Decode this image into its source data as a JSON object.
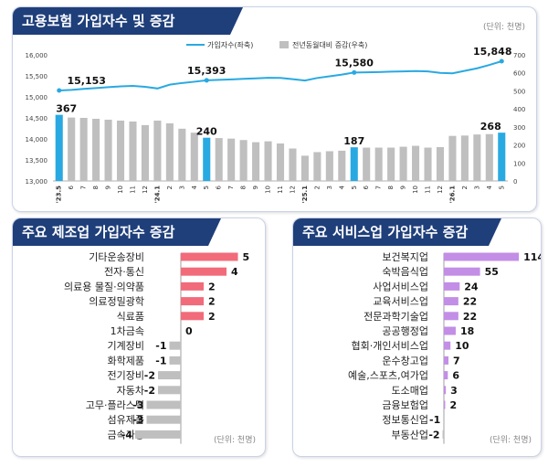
{
  "top": {
    "title": "고용보험 가입자수 및 증감",
    "unit": "(단위: 천명)",
    "legend_line": "가입자수(좌축)",
    "legend_bar": "전년동월대비 증감(우축)"
  },
  "manufacturing": {
    "title": "주요 제조업 가입자수 증감",
    "unit": "(단위: 천명)"
  },
  "services": {
    "title": "주요 서비스업 가입자수 증감",
    "unit": "(단위: 천명)"
  },
  "colors": {
    "title_bg": "#1f3f7a",
    "line": "#29a9e1",
    "bar_gray": "#bfbfbf",
    "bar_blue": "#29a9e1",
    "manufacturing_pos": "#f26b7a",
    "negative": "#bfbfbf",
    "services_pos": "#c38ee6"
  },
  "chart_data": [
    {
      "type": "bar+line",
      "categories": [
        "'23.5",
        "6",
        "7",
        "8",
        "9",
        "10",
        "11",
        "12",
        "'24.1",
        "2",
        "3",
        "4",
        "5",
        "6",
        "7",
        "8",
        "9",
        "10",
        "11",
        "12",
        "'25.1",
        "2",
        "3",
        "4",
        "5",
        "6",
        "7",
        "8",
        "9",
        "10",
        "11",
        "12",
        "'26.1",
        "2",
        "3",
        "4",
        "5"
      ],
      "series": [
        {
          "name": "가입자수(좌축)",
          "type": "line",
          "axis": "left",
          "values": [
            15153,
            15165,
            15190,
            15210,
            15230,
            15250,
            15260,
            15240,
            15200,
            15290,
            15330,
            15360,
            15393,
            15405,
            15415,
            15430,
            15440,
            15455,
            15450,
            15420,
            15390,
            15450,
            15490,
            15530,
            15580,
            15585,
            15590,
            15600,
            15605,
            15615,
            15605,
            15570,
            15560,
            15620,
            15680,
            15760,
            15848
          ]
        },
        {
          "name": "전년동월대비 증감(우축)",
          "type": "bar",
          "axis": "right",
          "values": [
            367,
            352,
            350,
            345,
            340,
            335,
            330,
            310,
            335,
            320,
            290,
            268,
            240,
            238,
            235,
            227,
            215,
            220,
            208,
            180,
            140,
            160,
            165,
            168,
            187,
            185,
            185,
            185,
            190,
            195,
            185,
            188,
            250,
            252,
            258,
            260,
            268
          ]
        }
      ],
      "highlight_categories": [
        "'23.5",
        "5",
        "5",
        "5"
      ],
      "point_labels": [
        {
          "category_index": 0,
          "line": "15,153",
          "bar": "367"
        },
        {
          "category_index": 12,
          "line": "15,393",
          "bar": "240"
        },
        {
          "category_index": 24,
          "line": "15,580",
          "bar": "187"
        },
        {
          "category_index": 36,
          "line": "15,848",
          "bar": "268"
        }
      ],
      "y_left": {
        "ticks": [
          "16,000",
          "15,500",
          "15,000",
          "14,500",
          "14,000",
          "13,500",
          "13,000"
        ],
        "range": [
          13000,
          16000
        ]
      },
      "y_right": {
        "ticks": [
          "700",
          "600",
          "500",
          "400",
          "300",
          "200",
          "100",
          "0"
        ],
        "range": [
          0,
          700
        ]
      }
    },
    {
      "type": "bar",
      "orientation": "horizontal",
      "categories": [
        "기타운송장비",
        "전자·통신",
        "의료용 물질·의약품",
        "의료정밀광학",
        "식료품",
        "1차금속",
        "기계장비",
        "화학제품",
        "전기장비",
        "자동차",
        "고무·플라스틱",
        "섬유제품",
        "금속가공"
      ],
      "values": [
        5,
        4,
        2,
        2,
        2,
        0,
        -1,
        -1,
        -2,
        -2,
        -3,
        -3,
        -4
      ],
      "labels": [
        "5",
        "4",
        "2",
        "2",
        "2",
        "0",
        "-1",
        "-1",
        "-2",
        "-2",
        "-3",
        "-3",
        "-4"
      ]
    },
    {
      "type": "bar",
      "orientation": "horizontal",
      "categories": [
        "보건복지업",
        "숙박음식업",
        "사업서비스업",
        "교육서비스업",
        "전문과학기술업",
        "공공행정업",
        "협회·개인서비스업",
        "운수창고업",
        "예술,스포츠,여가업",
        "도소매업",
        "금융보험업",
        "정보통신업",
        "부동산업"
      ],
      "values": [
        114,
        55,
        24,
        22,
        22,
        18,
        10,
        7,
        6,
        3,
        2,
        -1,
        -2
      ],
      "labels": [
        "114",
        "55",
        "24",
        "22",
        "22",
        "18",
        "10",
        "7",
        "6",
        "3",
        "2",
        "-1",
        "-2"
      ]
    }
  ]
}
